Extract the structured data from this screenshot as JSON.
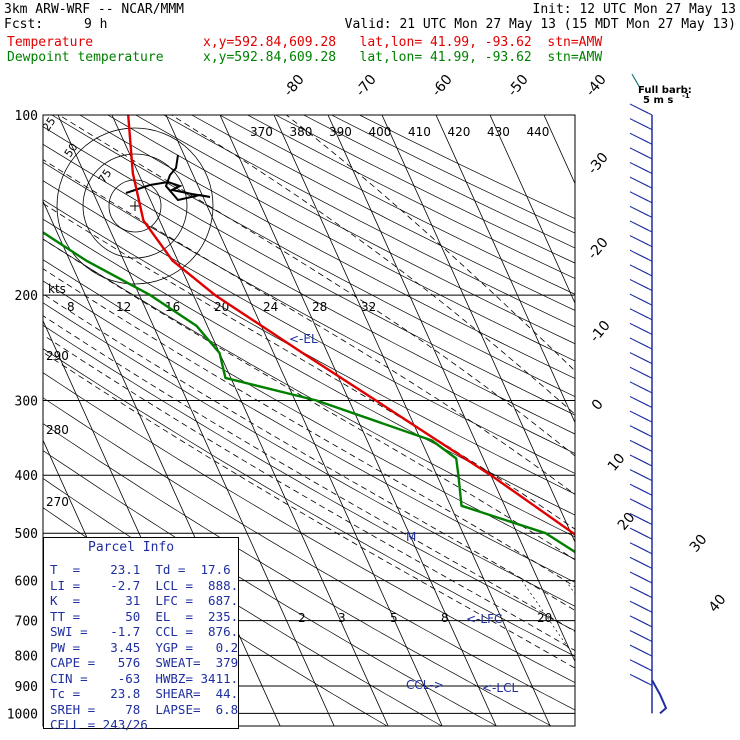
{
  "header": {
    "model": "3km ARW-WRF -- NCAR/MMM",
    "init": "Init: 12 UTC Mon 27 May 13",
    "fcst_label": "Fcst:",
    "fcst_value": "9 h",
    "valid": "Valid: 21 UTC Mon 27 May 13 (15 MDT Mon 27 May 13)",
    "temp_label": "Temperature",
    "temp_loc": "x,y=592.84,609.28   lat,lon= 41.99, -93.62  stn=AMW",
    "dew_label": "Dewpoint temperature",
    "dew_loc": "x,y=592.84,609.28   lat,lon= 41.99, -93.62  stn=AMW"
  },
  "colors": {
    "temperature": "#e00000",
    "dewpoint": "#008000",
    "wind": "#1f2fa0",
    "info": "#1f2fa0"
  },
  "chart_data": {
    "type": "line",
    "title": "",
    "y_axis": {
      "label": "Pressure (hPa)",
      "scale": "log",
      "ticks": [
        100,
        200,
        300,
        400,
        500,
        600,
        700,
        800,
        900,
        1000
      ]
    },
    "isotherm_labels": [
      "-80",
      "-70",
      "-60",
      "-50",
      "-40",
      "-30",
      "-20",
      "-10",
      "0",
      "10",
      "20",
      "30",
      "40"
    ],
    "theta_e_labels": [
      "370",
      "380",
      "390",
      "400",
      "410",
      "420",
      "430",
      "440"
    ],
    "dry_adiabat_labels": [
      "290",
      "280",
      "270"
    ],
    "mixing_ratio_labels": [
      "2",
      "3",
      "5",
      "8",
      "20"
    ],
    "hodograph": {
      "unit": "kts",
      "axis_labels": [
        "8",
        "12",
        "16",
        "20",
        "24",
        "28",
        "32"
      ],
      "ring_labels": [
        "75",
        "50",
        "25"
      ]
    },
    "series": [
      {
        "name": "Temperature",
        "points": [
          [
            1000,
            29.4
          ],
          [
            960,
            24.4
          ],
          [
            925,
            23.5
          ],
          [
            900,
            21
          ],
          [
            850,
            17.9
          ],
          [
            800,
            14.4
          ],
          [
            750,
            11.0
          ],
          [
            700,
            7.0
          ],
          [
            650,
            3.0
          ],
          [
            600,
            -1.5
          ],
          [
            550,
            -5.5
          ],
          [
            500,
            -9.6
          ],
          [
            450,
            -14.5
          ],
          [
            400,
            -20.0
          ],
          [
            350,
            -27.0
          ],
          [
            300,
            -35.0
          ],
          [
            250,
            -44.6
          ],
          [
            200,
            -56.0
          ],
          [
            175,
            -61.0
          ],
          [
            150,
            -63.0
          ],
          [
            125,
            -61.0
          ],
          [
            100,
            -57.0
          ]
        ]
      },
      {
        "name": "Dewpoint temperature",
        "points": [
          [
            1000,
            17.6
          ],
          [
            960,
            17.0
          ],
          [
            925,
            16.0
          ],
          [
            900,
            15.3
          ],
          [
            850,
            13.6
          ],
          [
            800,
            9.6
          ],
          [
            750,
            4.9
          ],
          [
            700,
            -1.6
          ],
          [
            650,
            -6.7
          ],
          [
            600,
            -9.6
          ],
          [
            550,
            -9.6
          ],
          [
            500,
            -14.7
          ],
          [
            450,
            -28.0
          ],
          [
            400,
            -26.0
          ],
          [
            375,
            -25.0
          ],
          [
            350,
            -28.0
          ],
          [
            300,
            -46.0
          ],
          [
            275,
            -61.0
          ],
          [
            250,
            -60.0
          ],
          [
            225,
            -62.0
          ],
          [
            200,
            -68.0
          ],
          [
            175,
            -77.0
          ],
          [
            150,
            -85.0
          ],
          [
            125,
            -87.0
          ],
          [
            100,
            -89.0
          ]
        ]
      }
    ],
    "annotations": [
      "<-EL",
      "<-LFC",
      "CCL->",
      "<-LCL",
      "M"
    ],
    "wind_plot": {
      "label": "Full barb:",
      "unit": "5 m s",
      "superscript": "-1"
    }
  },
  "parcel_info": {
    "title": "Parcel Info",
    "rows": [
      "T  =    23.1  Td =  17.6",
      "LI =    -2.7  LCL =  888.",
      "K  =      31  LFC =  687.",
      "TT =      50  EL  =  235.",
      "SWI =   -1.7  CCL =  876.",
      "PW =    3.45  YGP =   0.2",
      "CAPE =   576  SWEAT=  379",
      "CIN =    -63  HWBZ= 3411.",
      "Tc =    23.8  SHEAR=  44.",
      "SREH =    78  LAPSE=  6.8",
      "CELL = 243/26"
    ]
  }
}
